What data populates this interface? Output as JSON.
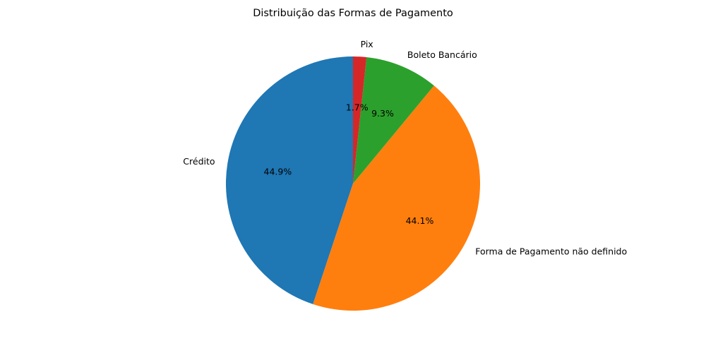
{
  "chart_data": {
    "type": "pie",
    "title": "Distribuição das Formas de Pagamento",
    "start_angle_deg": 90,
    "direction": "counterclockwise",
    "slices": [
      {
        "label": "Crédito",
        "value": 44.9,
        "pct_label": "44.9%",
        "color": "#1f77b4"
      },
      {
        "label": "Forma de Pagamento não definido",
        "value": 44.1,
        "pct_label": "44.1%",
        "color": "#ff7f0e"
      },
      {
        "label": "Boleto Bancário",
        "value": 9.3,
        "pct_label": "9.3%",
        "color": "#2ca02c"
      },
      {
        "label": "Pix",
        "value": 1.7,
        "pct_label": "1.7%",
        "color": "#d62728"
      }
    ]
  }
}
